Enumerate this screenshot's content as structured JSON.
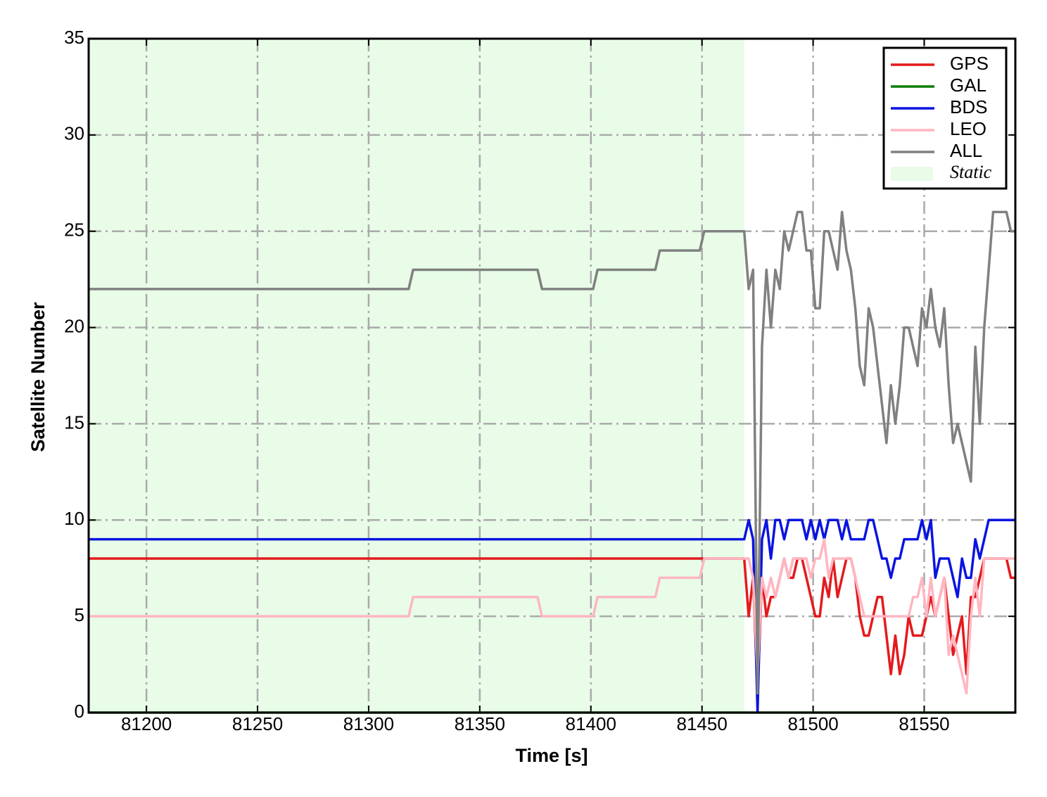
{
  "chart_data": {
    "type": "line",
    "xlabel": "Time [s]",
    "ylabel": "Satellite Number",
    "xlim": [
      81174,
      81591
    ],
    "ylim": [
      0,
      35
    ],
    "xticks": [
      81200,
      81250,
      81300,
      81350,
      81400,
      81450,
      81500,
      81550
    ],
    "yticks": [
      0,
      5,
      10,
      15,
      20,
      25,
      30,
      35
    ],
    "grid": true,
    "legend": "upper right",
    "shade": {
      "label": "Static",
      "x": [
        81174,
        81469
      ],
      "color": "#e8fce8"
    },
    "x": [
      81174,
      81318,
      81320,
      81376,
      81378,
      81401,
      81403,
      81429,
      81431,
      81449,
      81451,
      81469,
      81471,
      81473,
      81475,
      81477,
      81479,
      81481,
      81483,
      81485,
      81487,
      81489,
      81491,
      81493,
      81495,
      81497,
      81499,
      81501,
      81503,
      81505,
      81507,
      81509,
      81511,
      81513,
      81515,
      81517,
      81519,
      81521,
      81523,
      81525,
      81527,
      81529,
      81531,
      81533,
      81535,
      81537,
      81539,
      81541,
      81543,
      81545,
      81547,
      81549,
      81551,
      81553,
      81555,
      81557,
      81559,
      81561,
      81563,
      81565,
      81567,
      81569,
      81571,
      81573,
      81575,
      81577,
      81579,
      81581,
      81583,
      81585,
      81587,
      81589,
      81591
    ],
    "series": [
      {
        "name": "GPS",
        "color": "#e41a1c",
        "values": [
          8,
          8,
          8,
          8,
          8,
          8,
          8,
          8,
          8,
          8,
          8,
          8,
          5,
          7,
          1,
          7,
          5,
          6,
          6,
          7,
          8,
          7,
          7,
          8,
          8,
          7,
          6,
          5,
          5,
          7,
          6,
          8,
          6,
          7,
          8,
          8,
          7,
          5,
          4,
          4,
          5,
          6,
          6,
          4,
          2,
          4,
          2,
          3,
          5,
          4,
          4,
          4,
          5,
          6,
          5,
          6,
          7,
          5,
          3,
          4,
          5,
          2,
          6,
          6,
          7,
          8,
          8,
          8,
          8,
          8,
          8,
          7,
          7
        ]
      },
      {
        "name": "GAL",
        "color": "#0a7d0a",
        "values": [
          0,
          0,
          0,
          0,
          0,
          0,
          0,
          0,
          0,
          0,
          0,
          0,
          0,
          0,
          0,
          0,
          0,
          0,
          0,
          0,
          0,
          0,
          0,
          0,
          0,
          0,
          0,
          0,
          0,
          0,
          0,
          0,
          0,
          0,
          0,
          0,
          0,
          0,
          0,
          0,
          0,
          0,
          0,
          0,
          0,
          0,
          0,
          0,
          0,
          0,
          0,
          0,
          0,
          0,
          0,
          0,
          0,
          0,
          0,
          0,
          0,
          0,
          0,
          0,
          0,
          0,
          0,
          0,
          0,
          0,
          0,
          0,
          0
        ]
      },
      {
        "name": "BDS",
        "color": "#0a14e0",
        "values": [
          9,
          9,
          9,
          9,
          9,
          9,
          9,
          9,
          9,
          9,
          9,
          9,
          10,
          9,
          0,
          9,
          10,
          8,
          10,
          10,
          9,
          10,
          10,
          10,
          10,
          9,
          10,
          9,
          10,
          9,
          10,
          10,
          10,
          9,
          10,
          9,
          9,
          9,
          9,
          10,
          10,
          9,
          8,
          8,
          7,
          8,
          8,
          9,
          9,
          9,
          9,
          10,
          9,
          10,
          7,
          8,
          8,
          8,
          7,
          6,
          8,
          7,
          7,
          9,
          8,
          9,
          10,
          10,
          10,
          10,
          10,
          10,
          10
        ]
      },
      {
        "name": "LEO",
        "color": "#ffb6c1",
        "values": [
          5,
          5,
          6,
          6,
          5,
          5,
          6,
          6,
          7,
          7,
          8,
          8,
          8,
          7,
          2,
          7,
          6,
          7,
          6,
          7,
          8,
          7,
          8,
          8,
          8,
          8,
          7,
          8,
          8,
          9,
          7,
          8,
          8,
          8,
          8,
          8,
          7,
          6,
          5,
          5,
          5,
          5,
          5,
          5,
          5,
          5,
          5,
          5,
          5,
          6,
          6,
          7,
          5,
          7,
          5,
          6,
          7,
          3,
          4,
          3,
          2,
          1,
          5,
          7,
          5,
          8,
          8,
          8,
          8,
          8,
          8,
          8,
          8
        ]
      },
      {
        "name": "ALL",
        "color": "#808080",
        "values": [
          22,
          22,
          23,
          23,
          22,
          22,
          23,
          23,
          24,
          24,
          25,
          25,
          22,
          23,
          1,
          19,
          23,
          20,
          23,
          22,
          25,
          24,
          25,
          26,
          26,
          24,
          24,
          21,
          21,
          25,
          25,
          24,
          23,
          26,
          24,
          23,
          21,
          18,
          17,
          21,
          20,
          18,
          16,
          14,
          17,
          15,
          17,
          20,
          20,
          19,
          18,
          21,
          20,
          22,
          20,
          19,
          21,
          17,
          14,
          15,
          14,
          13,
          12,
          19,
          15,
          20,
          23,
          26,
          26,
          26,
          26,
          25,
          25
        ]
      }
    ]
  }
}
